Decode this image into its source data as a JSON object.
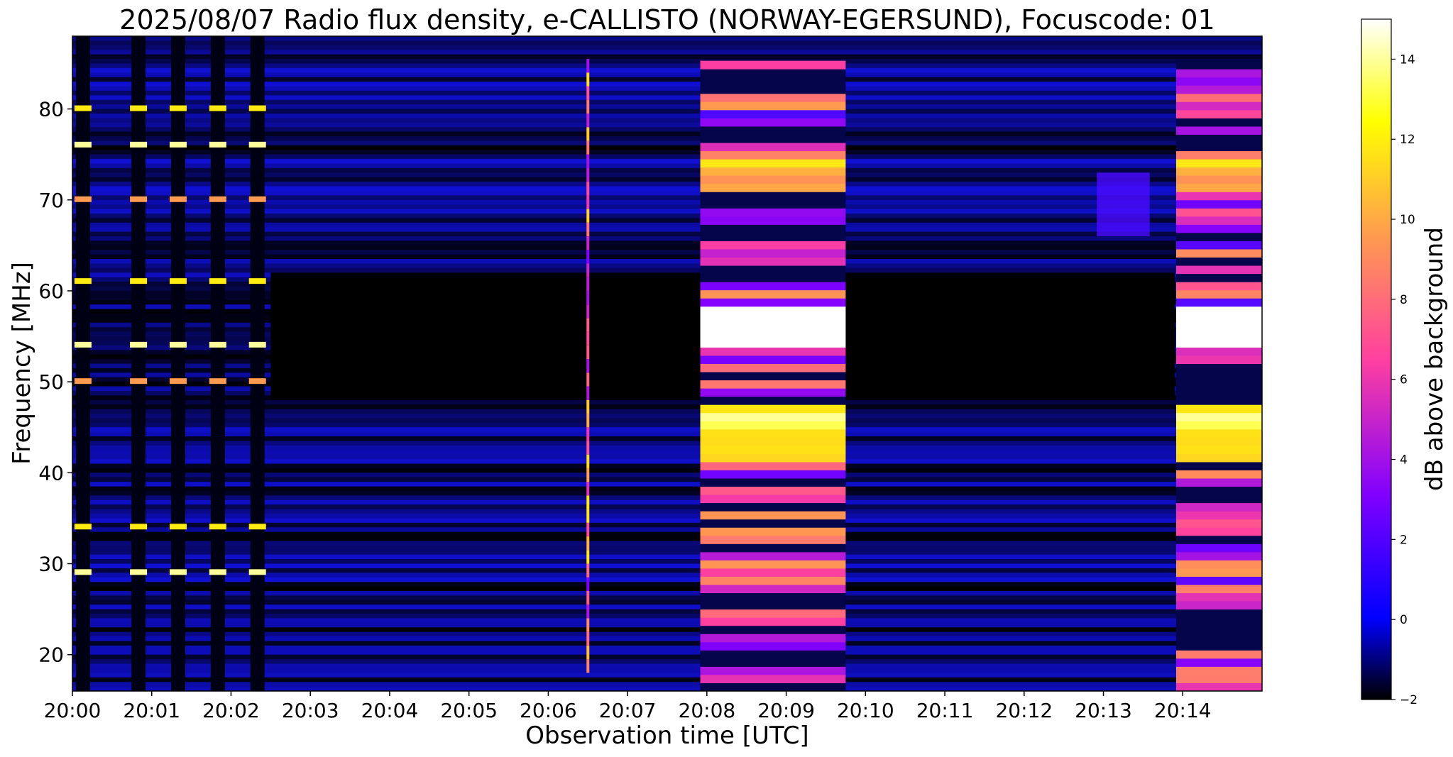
{
  "chart_data": {
    "type": "heatmap",
    "title": "2025/08/07  Radio flux density, e-CALLISTO (NORWAY-EGERSUND), Focuscode: 01",
    "xlabel": "Observation time [UTC]",
    "ylabel": "Frequency [MHz]",
    "x_unit": "minutes",
    "xlim": [
      "20:00",
      "20:15"
    ],
    "ylim": [
      16,
      88
    ],
    "x_ticks": [
      "20:00",
      "20:01",
      "20:02",
      "20:03",
      "20:04",
      "20:05",
      "20:06",
      "20:07",
      "20:08",
      "20:09",
      "20:10",
      "20:11",
      "20:12",
      "20:13",
      "20:14"
    ],
    "y_ticks": [
      20,
      30,
      40,
      50,
      60,
      70,
      80
    ],
    "colorbar": {
      "label": "dB above background",
      "range": [
        -2,
        15
      ],
      "ticks": [
        -2,
        0,
        2,
        4,
        6,
        8,
        10,
        12,
        14
      ],
      "colormap": "gnuplot2",
      "colors": [
        "#000000",
        "#0000ff",
        "#8000ff",
        "#ff40a0",
        "#ff9a50",
        "#ffff00",
        "#ffffff"
      ]
    },
    "events": [
      {
        "name": "calibration pulses",
        "times": [
          "20:00:08",
          "20:00:50",
          "20:01:20",
          "20:01:50",
          "20:02:20"
        ],
        "peak_db": 14
      },
      {
        "name": "narrow vertical burst",
        "time": "20:06:30",
        "freq_range": [
          18,
          85
        ],
        "peak_db": 12
      },
      {
        "name": "broadband emission",
        "time_range": [
          "20:07:55",
          "20:09:45"
        ],
        "freq_range": [
          16,
          85
        ],
        "peak_db": 15
      },
      {
        "name": "weak patch",
        "time_range": [
          "20:12:55",
          "20:13:35"
        ],
        "freq_range": [
          66,
          73
        ],
        "peak_db": 3
      },
      {
        "name": "broadband emission",
        "time_range": [
          "20:13:55",
          "20:15:00"
        ],
        "freq_range": [
          16,
          85
        ],
        "peak_db": 15
      }
    ]
  }
}
